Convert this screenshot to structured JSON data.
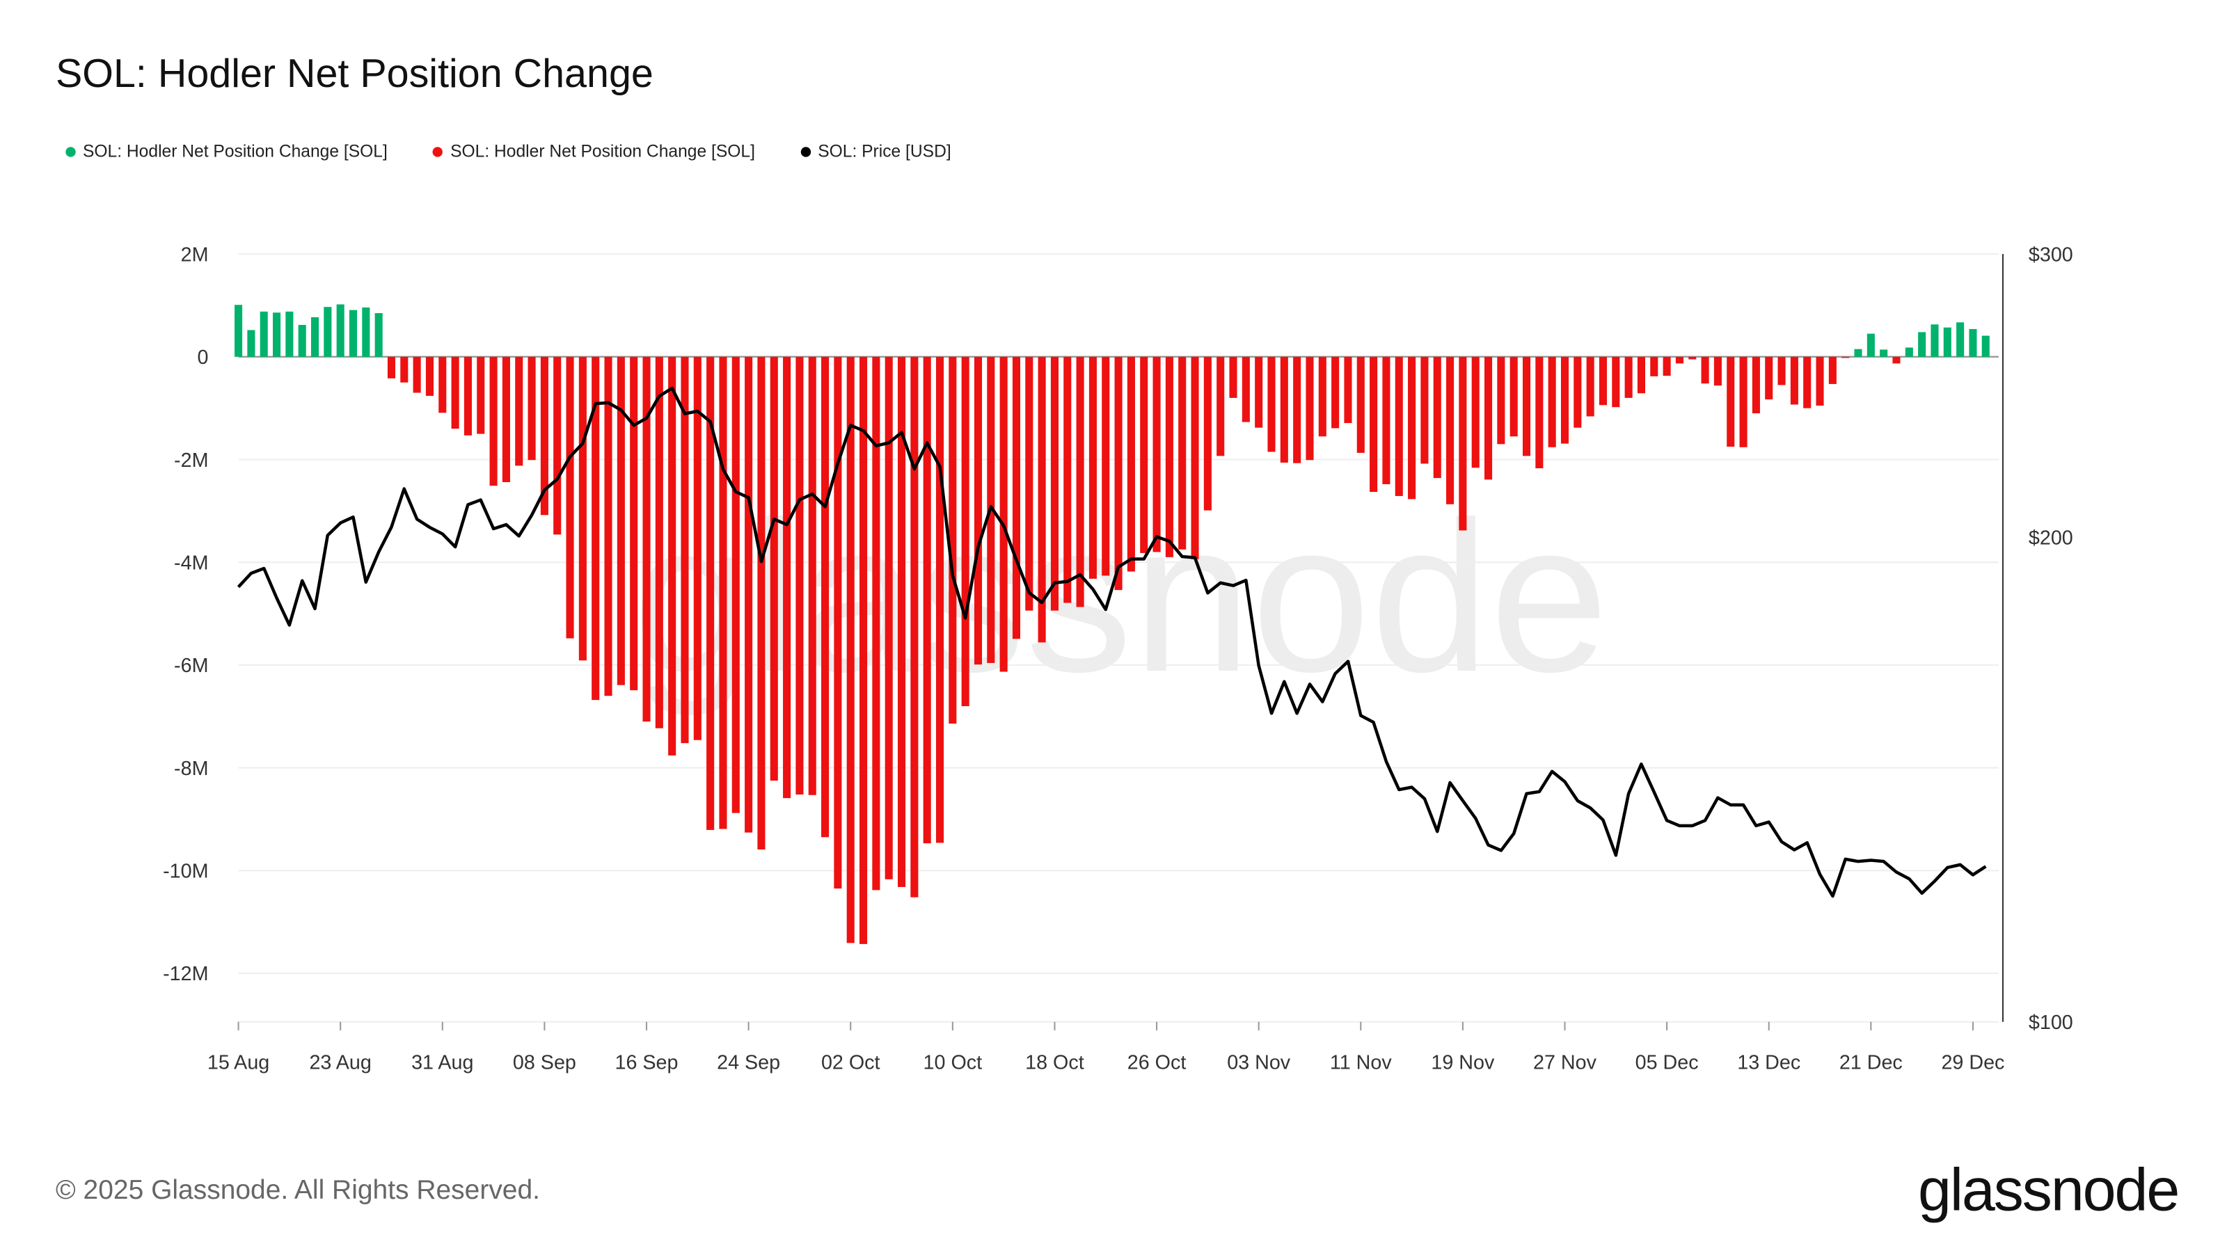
{
  "title": "SOL: Hodler Net Position Change",
  "legend": [
    {
      "label": "SOL: Hodler Net Position Change [SOL]",
      "color": "#00b26b"
    },
    {
      "label": "SOL: Hodler Net Position Change [SOL]",
      "color": "#ee1111"
    },
    {
      "label": "SOL: Price [USD]",
      "color": "#000000"
    }
  ],
  "watermark": "glassnode",
  "footer": "© 2025 Glassnode. All Rights Reserved.",
  "logo": "glassnode",
  "chart_data": {
    "type": "bar+line",
    "title": "SOL: Hodler Net Position Change",
    "grid": true,
    "legend_position": "top-left",
    "x_tick_labels": [
      "15 Aug",
      "23 Aug",
      "31 Aug",
      "08 Sep",
      "16 Sep",
      "24 Sep",
      "02 Oct",
      "10 Oct",
      "18 Oct",
      "26 Oct",
      "03 Nov",
      "11 Nov",
      "19 Nov",
      "27 Nov",
      "05 Dec",
      "13 Dec",
      "21 Dec",
      "29 Dec"
    ],
    "y_left": {
      "tick_labels": [
        "2M",
        "0",
        "-2M",
        "-4M",
        "-6M",
        "-8M",
        "-10M",
        "-12M"
      ],
      "ticks": [
        2000000.0,
        0,
        -2000000.0,
        -4000000.0,
        -6000000.0,
        -8000000.0,
        -10000000.0,
        -12000000.0
      ],
      "range": [
        -13000000.0,
        2000000.0
      ]
    },
    "y_right": {
      "tick_labels": [
        "$300",
        "$200",
        "$100"
      ],
      "ticks": [
        300,
        200,
        100
      ],
      "range": [
        100,
        300
      ],
      "scale": "log"
    },
    "dates": [
      "15 Aug",
      "16 Aug",
      "17 Aug",
      "18 Aug",
      "19 Aug",
      "20 Aug",
      "21 Aug",
      "22 Aug",
      "23 Aug",
      "24 Aug",
      "25 Aug",
      "26 Aug",
      "27 Aug",
      "28 Aug",
      "29 Aug",
      "30 Aug",
      "31 Aug",
      "01 Sep",
      "02 Sep",
      "03 Sep",
      "04 Sep",
      "05 Sep",
      "06 Sep",
      "07 Sep",
      "08 Sep",
      "09 Sep",
      "10 Sep",
      "11 Sep",
      "12 Sep",
      "13 Sep",
      "14 Sep",
      "15 Sep",
      "16 Sep",
      "17 Sep",
      "18 Sep",
      "19 Sep",
      "20 Sep",
      "21 Sep",
      "22 Sep",
      "23 Sep",
      "24 Sep",
      "25 Sep",
      "26 Sep",
      "27 Sep",
      "28 Sep",
      "29 Sep",
      "30 Sep",
      "01 Oct",
      "02 Oct",
      "03 Oct",
      "04 Oct",
      "05 Oct",
      "06 Oct",
      "07 Oct",
      "08 Oct",
      "09 Oct",
      "10 Oct",
      "11 Oct",
      "12 Oct",
      "13 Oct",
      "14 Oct",
      "15 Oct",
      "16 Oct",
      "17 Oct",
      "18 Oct",
      "19 Oct",
      "20 Oct",
      "21 Oct",
      "22 Oct",
      "23 Oct",
      "24 Oct",
      "25 Oct",
      "26 Oct",
      "27 Oct",
      "28 Oct",
      "29 Oct",
      "30 Oct",
      "31 Oct",
      "01 Nov",
      "02 Nov",
      "03 Nov",
      "04 Nov",
      "05 Nov",
      "06 Nov",
      "07 Nov",
      "08 Nov",
      "09 Nov",
      "10 Nov",
      "11 Nov",
      "12 Nov",
      "13 Nov",
      "14 Nov",
      "15 Nov",
      "16 Nov",
      "17 Nov",
      "18 Nov",
      "19 Nov",
      "20 Nov",
      "21 Nov",
      "22 Nov",
      "23 Nov",
      "24 Nov",
      "25 Nov",
      "26 Nov",
      "27 Nov",
      "28 Nov",
      "29 Nov",
      "30 Nov",
      "01 Dec",
      "02 Dec",
      "03 Dec",
      "04 Dec",
      "05 Dec",
      "06 Dec",
      "07 Dec",
      "08 Dec",
      "09 Dec",
      "10 Dec",
      "11 Dec",
      "12 Dec",
      "13 Dec",
      "14 Dec",
      "15 Dec",
      "16 Dec",
      "17 Dec",
      "18 Dec",
      "19 Dec",
      "20 Dec",
      "21 Dec",
      "22 Dec",
      "23 Dec",
      "24 Dec",
      "25 Dec",
      "26 Dec",
      "27 Dec",
      "28 Dec",
      "29 Dec",
      "30 Dec"
    ],
    "series": [
      {
        "name": "SOL: Hodler Net Position Change [SOL]",
        "type": "bar",
        "axis": "left",
        "positive_color": "#00b26b",
        "negative_color": "#ee1111",
        "values": [
          1010000.0,
          520000.0,
          880000.0,
          860000.0,
          880000.0,
          620000.0,
          770000.0,
          970000.0,
          1020000.0,
          910000.0,
          960000.0,
          850000.0,
          -420000.0,
          -500000.0,
          -700000.0,
          -760000.0,
          -1090000.0,
          -1400000.0,
          -1530000.0,
          -1500000.0,
          -2510000.0,
          -2440000.0,
          -2120000.0,
          -2010000.0,
          -3080000.0,
          -3460000.0,
          -5480000.0,
          -5910000.0,
          -6680000.0,
          -6600000.0,
          -6390000.0,
          -6490000.0,
          -7100000.0,
          -7230000.0,
          -7760000.0,
          -7520000.0,
          -7460000.0,
          -9210000.0,
          -9190000.0,
          -8880000.0,
          -9260000.0,
          -9590000.0,
          -8250000.0,
          -8590000.0,
          -8520000.0,
          -8530000.0,
          -9350000.0,
          -10350000.0,
          -11410000.0,
          -11430000.0,
          -10380000.0,
          -10170000.0,
          -10320000.0,
          -10520000.0,
          -9470000.0,
          -9460000.0,
          -7140000.0,
          -6800000.0,
          -5990000.0,
          -5960000.0,
          -6130000.0,
          -5490000.0,
          -4940000.0,
          -5560000.0,
          -4940000.0,
          -4790000.0,
          -4870000.0,
          -4320000.0,
          -4260000.0,
          -4540000.0,
          -4180000.0,
          -3820000.0,
          -3800000.0,
          -3900000.0,
          -3750000.0,
          -3940000.0,
          -2990000.0,
          -1930000.0,
          -800000.0,
          -1270000.0,
          -1380000.0,
          -1850000.0,
          -2060000.0,
          -2070000.0,
          -2010000.0,
          -1550000.0,
          -1390000.0,
          -1290000.0,
          -1870000.0,
          -2630000.0,
          -2480000.0,
          -2710000.0,
          -2770000.0,
          -2080000.0,
          -2360000.0,
          -2870000.0,
          -3380000.0,
          -2160000.0,
          -2390000.0,
          -1700000.0,
          -1550000.0,
          -1930000.0,
          -2170000.0,
          -1760000.0,
          -1690000.0,
          -1380000.0,
          -1160000.0,
          -940000.0,
          -980000.0,
          -800000.0,
          -710000.0,
          -380000.0,
          -370000.0,
          -130000.0,
          -50000.0,
          -520000.0,
          -560000.0,
          -1750000.0,
          -1760000.0,
          -1100000.0,
          -830000.0,
          -550000.0,
          -930000.0,
          -1000000.0,
          -950000.0,
          -530000.0,
          -10000.0,
          150000.0,
          450000.0,
          140000.0,
          -130000.0,
          180000.0,
          480000.0,
          630000.0,
          570000.0,
          670000.0,
          540000.0,
          410000.0
        ]
      },
      {
        "name": "SOL: Price [USD]",
        "type": "line",
        "axis": "right",
        "color": "#000000",
        "values": [
          186.3,
          190.0,
          191.3,
          183.4,
          176.4,
          188.0,
          180.6,
          200.6,
          204.2,
          205.9,
          187.6,
          195.9,
          203.0,
          214.4,
          205.3,
          202.9,
          201.0,
          197.3,
          209.6,
          211.0,
          202.5,
          203.7,
          200.4,
          206.5,
          214.0,
          217.4,
          224.5,
          228.8,
          242.2,
          242.5,
          240.0,
          234.8,
          237.2,
          244.8,
          247.6,
          238.7,
          239.6,
          236.0,
          220.5,
          213.5,
          211.7,
          193.2,
          205.3,
          203.7,
          211.1,
          212.8,
          209.0,
          222.4,
          234.8,
          233.0,
          228.0,
          229.0,
          232.4,
          220.6,
          229.0,
          221.3,
          189.4,
          178.2,
          197.3,
          209.0,
          203.4,
          193.6,
          184.8,
          182.2,
          187.4,
          187.8,
          189.6,
          185.7,
          180.4,
          191.7,
          193.9,
          193.9,
          200.2,
          198.9,
          194.6,
          194.3,
          184.7,
          187.4,
          186.7,
          188.1,
          166.5,
          155.5,
          162.7,
          155.5,
          162.1,
          158.1,
          164.6,
          167.5,
          155.0,
          153.5,
          145.1,
          139.4,
          139.9,
          137.6,
          131.3,
          140.8,
          137.2,
          133.8,
          128.8,
          127.8,
          130.9,
          138.6,
          139.0,
          143.1,
          141.0,
          137.2,
          135.8,
          133.5,
          126.9,
          138.6,
          144.6,
          138.9,
          133.4,
          132.4,
          132.4,
          133.4,
          137.8,
          136.4,
          136.4,
          132.4,
          133.1,
          129.4,
          127.9,
          129.2,
          123.5,
          119.7,
          126.2,
          125.8,
          126.0,
          125.8,
          123.9,
          122.7,
          120.2,
          122.3,
          124.7,
          125.2,
          123.4,
          124.9
        ]
      }
    ]
  }
}
